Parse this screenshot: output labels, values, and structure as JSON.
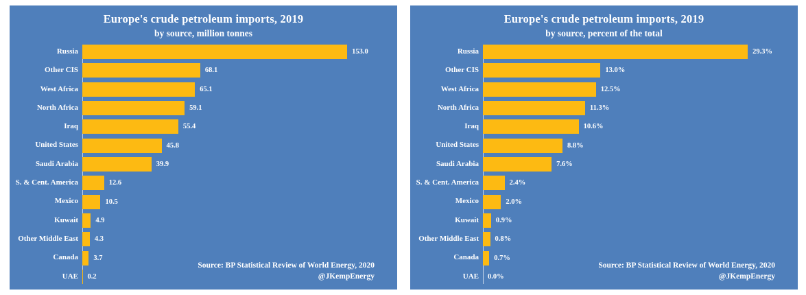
{
  "colors": {
    "panel_background": "#4f7fbb",
    "bar": "#fdba12",
    "text": "#ffffff"
  },
  "source": {
    "line1": "Source: BP Statistical Review of World Energy, 2020",
    "line2": "@JKempEnergy"
  },
  "chart_data": [
    {
      "type": "bar",
      "orientation": "horizontal",
      "title": "Europe's crude petroleum imports, 2019",
      "subtitle": "by source, million tonnes",
      "categories": [
        "Russia",
        "Other CIS",
        "West Africa",
        "North Africa",
        "Iraq",
        "United States",
        "Saudi Arabia",
        "S. & Cent. America",
        "Mexico",
        "Kuwait",
        "Other Middle East",
        "Canada",
        "UAE"
      ],
      "values": [
        153.0,
        68.1,
        65.1,
        59.1,
        55.4,
        45.8,
        39.9,
        12.6,
        10.5,
        4.9,
        4.3,
        3.7,
        0.2
      ],
      "value_labels": [
        "153.0",
        "68.1",
        "65.1",
        "59.1",
        "55.4",
        "45.8",
        "39.9",
        "12.6",
        "10.5",
        "4.9",
        "4.3",
        "3.7",
        "0.2"
      ],
      "xlim": [
        0,
        178
      ],
      "grid": false,
      "legend": false,
      "value_labels_position": "end-of-bar"
    },
    {
      "type": "bar",
      "orientation": "horizontal",
      "title": "Europe's crude petroleum imports, 2019",
      "subtitle": "by source, percent of the total",
      "categories": [
        "Russia",
        "Other CIS",
        "West Africa",
        "North Africa",
        "Iraq",
        "United States",
        "Saudi Arabia",
        "S. & Cent. America",
        "Mexico",
        "Kuwait",
        "Other Middle East",
        "Canada",
        "UAE"
      ],
      "values": [
        29.3,
        13.0,
        12.5,
        11.3,
        10.6,
        8.8,
        7.6,
        2.4,
        2.0,
        0.9,
        0.8,
        0.7,
        0.0
      ],
      "value_labels": [
        "29.3%",
        "13.0%",
        "12.5%",
        "11.3%",
        "10.6%",
        "8.8%",
        "7.6%",
        "2.4%",
        "2.0%",
        "0.9%",
        "0.8%",
        "0.7%",
        "0.0%"
      ],
      "xlim": [
        0,
        34
      ],
      "grid": false,
      "legend": false,
      "value_labels_position": "end-of-bar"
    }
  ]
}
